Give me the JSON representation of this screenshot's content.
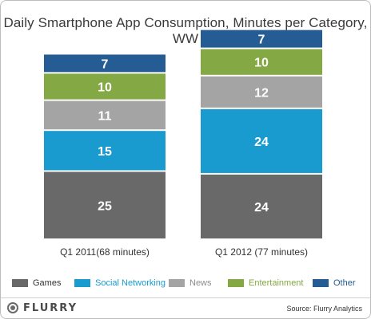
{
  "title": "Daily Smartphone App Consumption, Minutes per Category, WW",
  "chart_data": {
    "type": "bar",
    "stacked": true,
    "title": "Daily Smartphone App Consumption, Minutes per Category, WW",
    "categories": [
      "Q1 2011(68 minutes)",
      "Q1 2012 (77 minutes)"
    ],
    "series": [
      {
        "name": "Games",
        "color": "#696969",
        "values": [
          25,
          24
        ]
      },
      {
        "name": "Social Networking",
        "color": "#1a9bd0",
        "values": [
          15,
          24
        ]
      },
      {
        "name": "News",
        "color": "#a4a4a4",
        "values": [
          11,
          12
        ]
      },
      {
        "name": "Entertainment",
        "color": "#84a843",
        "values": [
          10,
          10
        ]
      },
      {
        "name": "Other",
        "color": "#255c93",
        "values": [
          7,
          7
        ]
      }
    ],
    "data_labels": true,
    "grid": false,
    "legend_position": "bottom"
  },
  "legend_colors": {
    "Games": "#333333",
    "Social Networking": "#1a9bd0",
    "News": "#8c8c8c",
    "Entertainment": "#84a843",
    "Other": "#255c93"
  },
  "footer": {
    "logo_text": "FLURRY",
    "source": "Source: Flurry Analytics"
  }
}
